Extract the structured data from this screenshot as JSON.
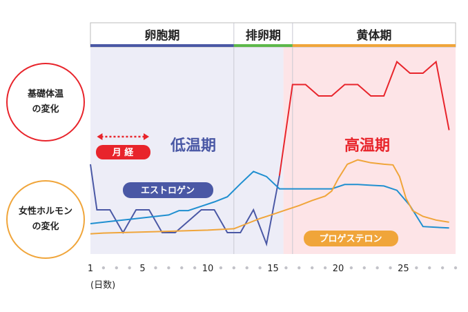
{
  "colors": {
    "follicular_bg": "#ededf7",
    "luteal_bg": "#fde4e7",
    "follicular_bar": "#4a58a5",
    "ovulation_bar": "#5db84a",
    "luteal_bar": "#f0a53a",
    "temperature_line": "#e8242b",
    "temperature_low_line": "#4a58a5",
    "estrogen_line": "#1f8fd0",
    "progesterone_line": "#f0a53a",
    "low_temp_text": "#4a58a5",
    "high_temp_text": "#e8242b",
    "estrogen_pill": "#4a58a5",
    "progesterone_pill": "#f0a53a",
    "menstruation_pill": "#e8242b"
  },
  "labels": {
    "temp_circle": [
      "基礎体温",
      "の変化"
    ],
    "hormone_circle": [
      "女性ホルモン",
      "の変化"
    ],
    "low_temp": "低温期",
    "high_temp": "高温期",
    "menstruation": "月 経",
    "estrogen": "エストロゲン",
    "progesterone": "プロゲステロン",
    "x_unit": "(日数)"
  },
  "chart_data": {
    "type": "line",
    "xlim": [
      1,
      29
    ],
    "x_ticks": [
      1,
      5,
      10,
      15,
      20,
      25
    ],
    "x_tick_labels": [
      "1",
      "5",
      "10",
      "15",
      "20",
      "25"
    ],
    "phases": [
      {
        "name": "卵胞期",
        "start": 1,
        "end": 12
      },
      {
        "name": "排卵期",
        "start": 12,
        "end": 16.5
      },
      {
        "name": "黄体期",
        "start": 16.5,
        "end": 29
      }
    ],
    "high_temp_start": 15.8,
    "menstruation": {
      "start": 1.5,
      "end": 5.5
    },
    "temperature": {
      "x": [
        1,
        1.5,
        2.5,
        3.5,
        4.5,
        5.5,
        6.5,
        7.5,
        8.5,
        9.5,
        10.5,
        11.5,
        12.5,
        13.5,
        14.5,
        15.5,
        16.5,
        17.5,
        18.5,
        19.5,
        20.5,
        21.5,
        22.5,
        23.5,
        24.5,
        25.5,
        26.5,
        27.5,
        28.5
      ],
      "y": [
        36.35,
        36.15,
        36.15,
        36.05,
        36.15,
        36.15,
        36.05,
        36.05,
        36.1,
        36.15,
        36.15,
        36.05,
        36.05,
        36.15,
        36.0,
        36.3,
        36.7,
        36.7,
        36.65,
        36.65,
        36.7,
        36.7,
        36.65,
        36.65,
        36.8,
        36.75,
        36.75,
        36.8,
        36.5
      ]
    },
    "estrogen": {
      "x": [
        1,
        2,
        3,
        4,
        5,
        6,
        7,
        7.8,
        8.5,
        9.5,
        10.5,
        11.5,
        12.5,
        13.5,
        14.5,
        15.5,
        16.5,
        17.5,
        18.5,
        19.5,
        20.5,
        21.5,
        22.5,
        23.5,
        24.5,
        25.5,
        26.5,
        27.5,
        28.5
      ],
      "y": [
        0.2,
        0.22,
        0.24,
        0.26,
        0.28,
        0.3,
        0.32,
        0.38,
        0.38,
        0.44,
        0.5,
        0.57,
        0.75,
        0.92,
        0.85,
        0.68,
        0.68,
        0.68,
        0.68,
        0.68,
        0.74,
        0.74,
        0.73,
        0.72,
        0.66,
        0.45,
        0.16,
        0.15,
        0.14
      ]
    },
    "progesterone": {
      "x": [
        1,
        2,
        4,
        6,
        8,
        10,
        12,
        13,
        14,
        15,
        16,
        17,
        18,
        19,
        19.5,
        20,
        20.7,
        21.5,
        22.5,
        23.5,
        24.2,
        24.7,
        25.2,
        25.7,
        26.5,
        27.5,
        28.5
      ],
      "y": [
        0.06,
        0.07,
        0.08,
        0.09,
        0.1,
        0.11,
        0.13,
        0.2,
        0.27,
        0.33,
        0.39,
        0.45,
        0.52,
        0.58,
        0.65,
        0.82,
        1.02,
        1.08,
        1.04,
        1.02,
        1.01,
        0.85,
        0.55,
        0.38,
        0.3,
        0.25,
        0.22
      ]
    }
  }
}
